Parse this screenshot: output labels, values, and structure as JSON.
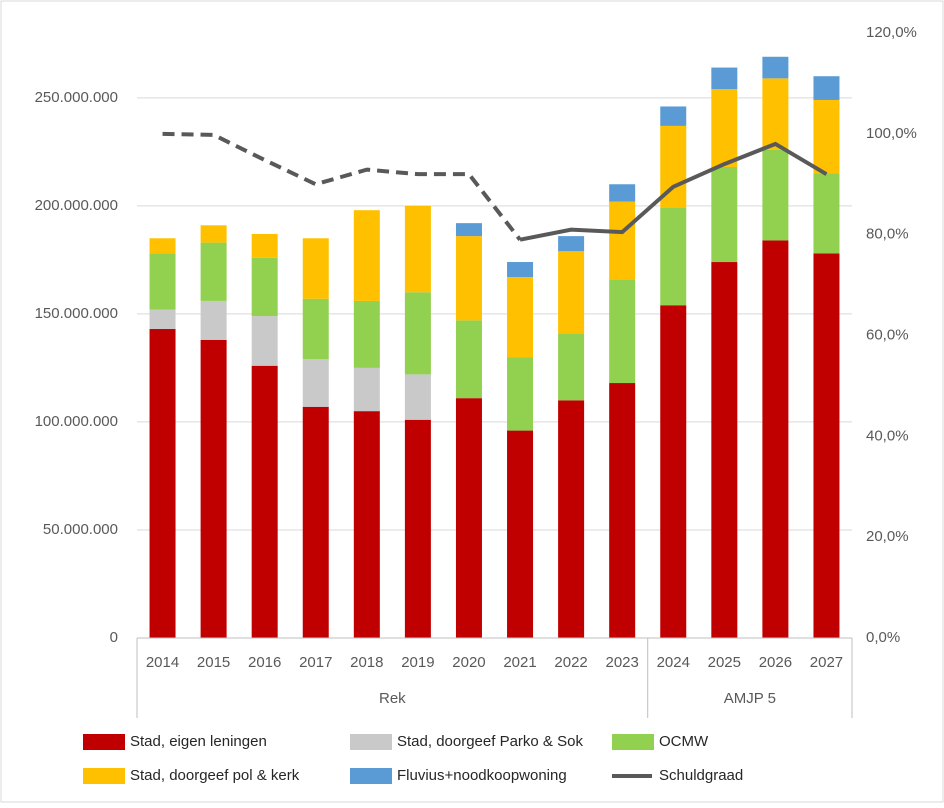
{
  "chart_data": {
    "type": "stacked_bar_line",
    "categories": [
      "2014",
      "2015",
      "2016",
      "2017",
      "2018",
      "2019",
      "2020",
      "2021",
      "2022",
      "2023",
      "2024",
      "2025",
      "2026",
      "2027"
    ],
    "groups": [
      {
        "label": "Rek",
        "size": 10
      },
      {
        "label": "AMJP 5",
        "size": 4
      }
    ],
    "series": [
      {
        "name": "Stad, eigen leningen",
        "color": "#c00000",
        "values": [
          143000000,
          138000000,
          126000000,
          107000000,
          105000000,
          101000000,
          111000000,
          96000000,
          110000000,
          118000000,
          154000000,
          174000000,
          184000000,
          178000000
        ]
      },
      {
        "name": "Stad, doorgeef Parko & Sok",
        "color": "#c9c9c9",
        "values": [
          9000000,
          18000000,
          23000000,
          22000000,
          20000000,
          21000000,
          0,
          0,
          0,
          0,
          0,
          0,
          0,
          0
        ]
      },
      {
        "name": "OCMW",
        "color": "#92d050",
        "values": [
          26000000,
          27000000,
          27000000,
          28000000,
          31000000,
          38000000,
          36000000,
          34000000,
          31000000,
          48000000,
          45000000,
          44000000,
          42000000,
          37000000
        ]
      },
      {
        "name": "Stad, doorgeef pol & kerk",
        "color": "#ffc000",
        "values": [
          7000000,
          8000000,
          11000000,
          28000000,
          42000000,
          40000000,
          39000000,
          37000000,
          38000000,
          36000000,
          38000000,
          36000000,
          33000000,
          34000000
        ]
      },
      {
        "name": "Fluvius+noodkoopwoning",
        "color": "#5b9bd5",
        "values": [
          0,
          0,
          0,
          0,
          0,
          0,
          6000000,
          7000000,
          7000000,
          8000000,
          9000000,
          10000000,
          10000000,
          11000000
        ]
      },
      {
        "name": "Schuldgraad",
        "color": "#595959",
        "type": "line",
        "axis": "y2",
        "dashed_until": 7,
        "values": [
          100,
          99.8,
          94.8,
          90,
          92.9,
          92,
          92,
          79,
          81,
          80.5,
          89.5,
          94,
          98,
          92
        ]
      }
    ],
    "ylim": [
      0,
      280000000
    ],
    "yticks": [
      0,
      {
        "value": 50000000,
        "label": "50.000.000"
      },
      {
        "value": 100000000,
        "label": "100.000.000"
      },
      {
        "value": 150000000,
        "label": "150.000.000"
      },
      {
        "value": 200000000,
        "label": "200.000.000"
      },
      {
        "value": 250000000,
        "label": "250.000.000"
      }
    ],
    "y2lim": [
      0,
      120
    ],
    "y2ticks": [
      {
        "value": 0,
        "label": "0,0%"
      },
      {
        "value": 20,
        "label": "20,0%"
      },
      {
        "value": 40,
        "label": "40,0%"
      },
      {
        "value": 60,
        "label": "60,0%"
      },
      {
        "value": 80,
        "label": "80,0%"
      },
      {
        "value": 100,
        "label": "100,0%"
      },
      {
        "value": 120,
        "label": "120,0%"
      }
    ],
    "grid": true,
    "legend": "bottom"
  }
}
